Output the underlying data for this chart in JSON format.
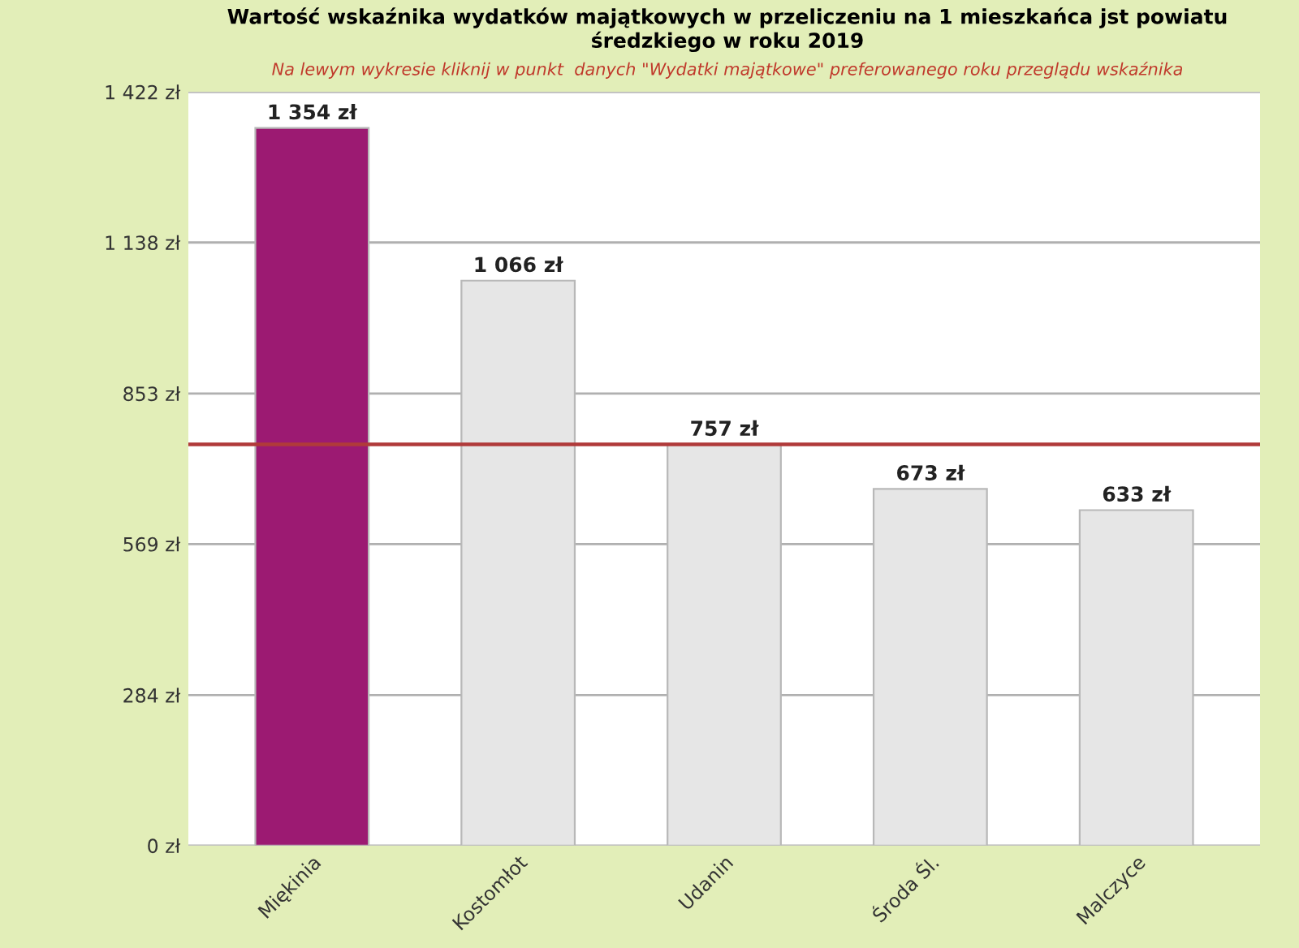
{
  "chart_data": {
    "type": "bar",
    "title": "Wartość wskaźnika wydatków majątkowych w przeliczeniu na 1 mieszkańca jst powiatu\nśredzkiego w roku 2019",
    "subtitle": "Na lewym wykresie kliknij w punkt  danych \"Wydatki majątkowe\" preferowanego roku przeglądu wskaźnika",
    "categories": [
      "Miękinia",
      "Kostomłot",
      "Udanin",
      "Środa Śl.",
      "Malczyce"
    ],
    "values": [
      1354,
      1066,
      757,
      673,
      633
    ],
    "colors": [
      "#9c1a72",
      "#e6e6e6",
      "#e6e6e6",
      "#e6e6e6",
      "#e6e6e6"
    ],
    "value_labels": [
      "1 354 zł",
      "1 066 zł",
      "757 zł",
      "673 zł",
      "633 zł"
    ],
    "ylim": [
      0,
      1422
    ],
    "yticks": [
      {
        "value": 0,
        "label": "0 zł"
      },
      {
        "value": 284,
        "label": "284 zł"
      },
      {
        "value": 569,
        "label": "569 zł"
      },
      {
        "value": 853,
        "label": "853 zł"
      },
      {
        "value": 1138,
        "label": "1 138 zł"
      },
      {
        "value": 1422,
        "label": "1 422 zł"
      }
    ],
    "ref_lines": [
      {
        "axis": "y",
        "value": 757,
        "label": null,
        "color": "#b03a3a"
      }
    ],
    "grid": "y"
  }
}
